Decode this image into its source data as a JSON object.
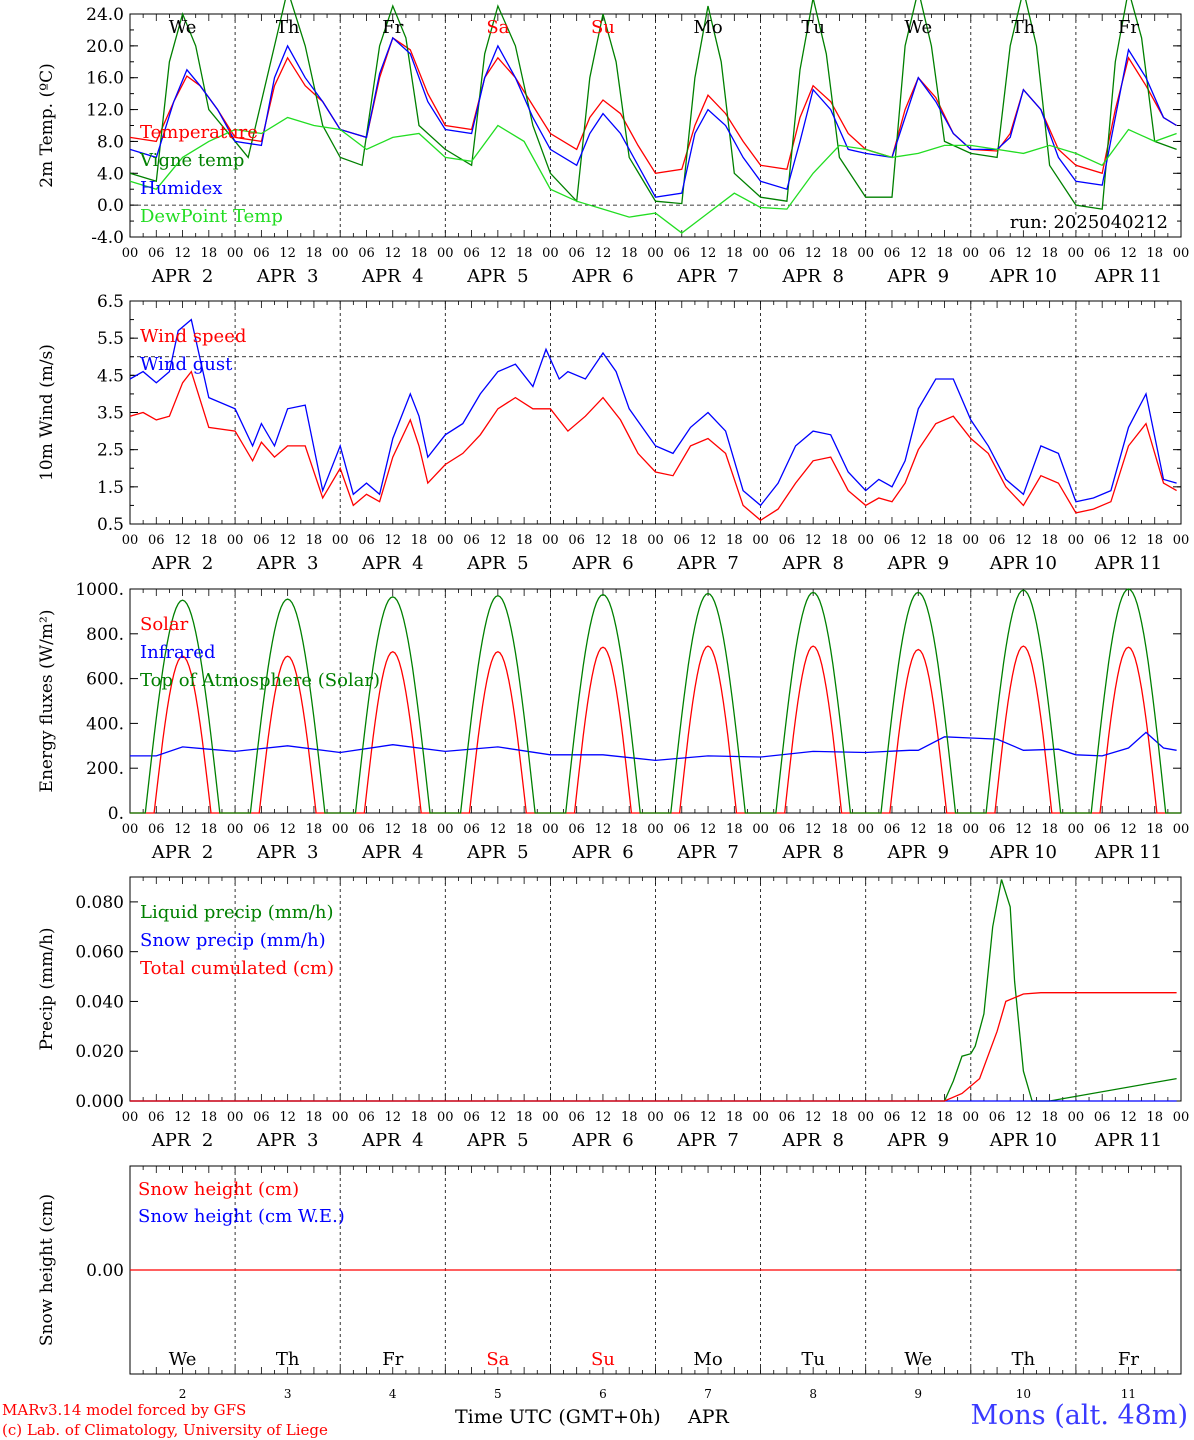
{
  "run": "run: 2025040212",
  "footer": {
    "model": "MARv3.14 model forced by GFS",
    "copyright": "(c) Lab. of Climatology, University of Liege",
    "xlabel": "Time UTC (GMT+0h)",
    "month": "APR",
    "location": "Mons (alt. 48m)"
  },
  "days": {
    "labels": [
      "We",
      "Th",
      "Fr",
      "Sa",
      "Su",
      "Mo",
      "Tu",
      "We",
      "Th",
      "Fr"
    ],
    "weekend": [
      false,
      false,
      false,
      true,
      true,
      false,
      false,
      false,
      false,
      false
    ],
    "dates": [
      "APR  2",
      "APR  3",
      "APR  4",
      "APR  5",
      "APR  6",
      "APR  7",
      "APR  8",
      "APR  9",
      "APR 10",
      "APR 11"
    ],
    "numbers": [
      "2",
      "3",
      "4",
      "5",
      "6",
      "7",
      "8",
      "9",
      "10",
      "11"
    ],
    "hour_ticks": [
      "00",
      "06",
      "12",
      "18"
    ]
  },
  "colors": {
    "red": "#ff0000",
    "green": "#008000",
    "blue": "#0000ff",
    "lime": "#22dd22"
  },
  "chart_data": [
    {
      "id": "temp",
      "type": "line",
      "ylabel": "2m Temp. (ºC)",
      "ylim": [
        -4,
        24
      ],
      "yticks": [
        -4,
        0,
        4,
        8,
        12,
        16,
        20,
        24
      ],
      "ytick_labels": [
        "-4.0",
        "0.0",
        "4.0",
        "8.0",
        "12.0",
        "16.0",
        "20.0",
        "24.0"
      ],
      "dashed_y": 0,
      "x_unit": "hours from 2025-04-02 00 UTC",
      "series": [
        {
          "name": "Temperature",
          "color": "red",
          "x": [
            0,
            6,
            10,
            13,
            16,
            20,
            24,
            30,
            33,
            36,
            40,
            44,
            48,
            54,
            57,
            60,
            64,
            68,
            72,
            78,
            81,
            84,
            88,
            92,
            96,
            102,
            105,
            108,
            112,
            116,
            120,
            126,
            129,
            132,
            136,
            140,
            144,
            150,
            153,
            156,
            160,
            164,
            168,
            174,
            177,
            180,
            184,
            188,
            192,
            198,
            201,
            204,
            208,
            212,
            216,
            222,
            225,
            228,
            232,
            236,
            239
          ],
          "y": [
            8.5,
            8,
            13,
            16.2,
            15,
            12,
            8.5,
            8,
            15,
            18.5,
            15,
            13,
            9.5,
            8.5,
            16,
            21,
            19.5,
            14,
            10,
            9.5,
            16,
            18.5,
            16,
            12.5,
            9,
            7,
            11,
            13.2,
            11.5,
            7.5,
            4,
            4.5,
            10,
            13.8,
            11.5,
            8,
            5,
            4.5,
            11,
            15,
            13,
            9,
            7,
            6,
            12,
            16,
            13.5,
            9,
            7,
            6.8,
            9,
            14.5,
            12,
            7,
            5,
            4,
            12,
            18.5,
            15,
            11,
            10
          ]
        },
        {
          "name": "Vigne temp",
          "color": "green",
          "x": [
            0,
            6,
            9,
            12,
            15,
            18,
            24,
            27,
            33,
            36,
            40,
            44,
            48,
            53,
            57,
            60,
            63,
            66,
            72,
            78,
            81,
            84,
            88,
            92,
            96,
            102,
            105,
            108,
            111,
            114,
            120,
            126,
            129,
            132,
            135,
            138,
            144,
            150,
            153,
            156,
            159,
            162,
            168,
            174,
            177,
            180,
            183,
            186,
            192,
            198,
            201,
            204,
            207,
            210,
            216,
            222,
            225,
            228,
            231,
            234,
            239
          ],
          "y": [
            4,
            3,
            18,
            24,
            20,
            12,
            8,
            6,
            20,
            27,
            20,
            10,
            6,
            5,
            20,
            25,
            21,
            10,
            7,
            5,
            19,
            25,
            20,
            10,
            4,
            0.5,
            16,
            24,
            18,
            6,
            0.5,
            0.2,
            16,
            25,
            18,
            4,
            1,
            0.5,
            17,
            26,
            19,
            6,
            1,
            1,
            20,
            27,
            20,
            8,
            6.5,
            6,
            20,
            27,
            20,
            5,
            0,
            -0.5,
            18,
            27,
            21,
            8,
            7
          ]
        },
        {
          "name": "Humidex",
          "color": "blue",
          "x": [
            0,
            6,
            10,
            13,
            16,
            20,
            24,
            30,
            33,
            36,
            40,
            44,
            48,
            54,
            57,
            60,
            64,
            68,
            72,
            78,
            81,
            84,
            88,
            92,
            96,
            102,
            105,
            108,
            112,
            116,
            120,
            126,
            129,
            132,
            136,
            140,
            144,
            150,
            153,
            156,
            160,
            164,
            168,
            174,
            177,
            180,
            184,
            188,
            192,
            198,
            201,
            204,
            208,
            212,
            216,
            222,
            225,
            228,
            232,
            236,
            239
          ],
          "y": [
            7,
            6,
            13,
            17,
            15,
            12,
            8,
            7.5,
            16,
            20,
            16,
            13,
            9.5,
            8.5,
            16.5,
            21,
            19,
            13,
            9.5,
            9,
            16,
            20,
            16,
            11,
            7,
            5,
            9,
            11.5,
            9,
            5,
            1,
            1.5,
            9,
            12,
            10,
            6,
            3,
            2,
            8,
            14.5,
            12,
            7,
            6.5,
            6,
            11,
            16,
            13,
            9,
            7,
            7,
            8.5,
            14.5,
            12,
            6,
            3,
            2.5,
            11,
            19.5,
            16,
            11,
            10
          ]
        },
        {
          "name": "DewPoint Temp",
          "color": "lime",
          "x": [
            0,
            6,
            12,
            18,
            24,
            30,
            36,
            42,
            48,
            54,
            60,
            66,
            72,
            78,
            84,
            90,
            96,
            102,
            108,
            114,
            120,
            126,
            132,
            138,
            144,
            150,
            156,
            162,
            168,
            174,
            180,
            186,
            192,
            198,
            204,
            210,
            216,
            222,
            228,
            234,
            239
          ],
          "y": [
            3,
            2,
            6,
            8,
            9.5,
            9,
            11,
            10,
            9.5,
            7,
            8.5,
            9,
            6,
            5.5,
            10,
            8,
            2,
            0.5,
            -0.5,
            -1.5,
            -1,
            -3.5,
            -1,
            1.5,
            -0.3,
            -0.5,
            4,
            7.5,
            7,
            6,
            6.5,
            7.5,
            7.5,
            7,
            6.5,
            7.5,
            6.5,
            5,
            9.5,
            8,
            9
          ]
        }
      ]
    },
    {
      "id": "wind",
      "type": "line",
      "ylabel": "10m Wind (m/s)",
      "ylim": [
        0.5,
        6.5
      ],
      "yticks": [
        0.5,
        1.5,
        2.5,
        3.5,
        4.5,
        5.5,
        6.5
      ],
      "ytick_labels": [
        "0.5",
        "1.5",
        "2.5",
        "3.5",
        "4.5",
        "5.5",
        "6.5"
      ],
      "dashed_y": 5,
      "series": [
        {
          "name": "Wind speed",
          "color": "red",
          "x": [
            0,
            3,
            6,
            9,
            12,
            14,
            18,
            24,
            28,
            30,
            33,
            36,
            40,
            44,
            48,
            51,
            54,
            57,
            60,
            64,
            66,
            68,
            72,
            76,
            80,
            84,
            88,
            92,
            96,
            100,
            104,
            108,
            112,
            116,
            120,
            124,
            128,
            132,
            136,
            140,
            144,
            148,
            152,
            156,
            160,
            164,
            168,
            171,
            174,
            177,
            180,
            184,
            188,
            192,
            196,
            200,
            204,
            208,
            212,
            216,
            220,
            224,
            228,
            232,
            236,
            239
          ],
          "y": [
            3.4,
            3.5,
            3.3,
            3.4,
            4.3,
            4.6,
            3.1,
            3.0,
            2.2,
            2.7,
            2.3,
            2.6,
            2.6,
            1.2,
            2.0,
            1.0,
            1.3,
            1.1,
            2.3,
            3.3,
            2.6,
            1.6,
            2.1,
            2.4,
            2.9,
            3.6,
            3.9,
            3.6,
            3.6,
            3.0,
            3.4,
            3.9,
            3.3,
            2.4,
            1.9,
            1.8,
            2.6,
            2.8,
            2.4,
            1.0,
            0.6,
            0.9,
            1.6,
            2.2,
            2.3,
            1.4,
            1.0,
            1.2,
            1.1,
            1.6,
            2.5,
            3.2,
            3.4,
            2.8,
            2.4,
            1.5,
            1.0,
            1.8,
            1.6,
            0.8,
            0.9,
            1.1,
            2.6,
            3.2,
            1.6,
            1.4
          ]
        },
        {
          "name": "Wind gust",
          "color": "blue",
          "x": [
            0,
            3,
            6,
            9,
            11,
            14,
            18,
            24,
            28,
            30,
            33,
            36,
            40,
            44,
            48,
            51,
            54,
            57,
            60,
            64,
            66,
            68,
            72,
            76,
            80,
            84,
            88,
            92,
            95,
            98,
            100,
            104,
            108,
            111,
            114,
            120,
            124,
            128,
            132,
            136,
            140,
            144,
            148,
            152,
            156,
            160,
            164,
            168,
            171,
            174,
            177,
            180,
            184,
            188,
            192,
            196,
            200,
            204,
            208,
            212,
            216,
            220,
            224,
            228,
            232,
            236,
            239
          ],
          "y": [
            4.4,
            4.6,
            4.3,
            4.6,
            5.7,
            6.0,
            3.9,
            3.6,
            2.6,
            3.2,
            2.6,
            3.6,
            3.7,
            1.4,
            2.6,
            1.3,
            1.6,
            1.3,
            2.8,
            4.0,
            3.4,
            2.3,
            2.9,
            3.2,
            4.0,
            4.6,
            4.8,
            4.2,
            5.2,
            4.4,
            4.6,
            4.4,
            5.1,
            4.6,
            3.6,
            2.6,
            2.4,
            3.1,
            3.5,
            3.0,
            1.4,
            1.0,
            1.6,
            2.6,
            3.0,
            2.9,
            1.9,
            1.4,
            1.7,
            1.5,
            2.2,
            3.6,
            4.4,
            4.4,
            3.3,
            2.6,
            1.7,
            1.3,
            2.6,
            2.4,
            1.1,
            1.2,
            1.4,
            3.1,
            4.0,
            1.7,
            1.6
          ]
        }
      ]
    },
    {
      "id": "flux",
      "type": "line",
      "ylabel": "Energy fluxes (W/m²)",
      "ylim": [
        0,
        1000
      ],
      "yticks": [
        0,
        200,
        400,
        600,
        800,
        1000
      ],
      "ytick_labels": [
        "0.",
        "200.",
        "400.",
        "600.",
        "800.",
        "1000."
      ],
      "solar_peaks": [
        700,
        700,
        720,
        720,
        740,
        745,
        745,
        730,
        745,
        740
      ],
      "toa_peaks": [
        950,
        955,
        965,
        970,
        975,
        980,
        985,
        985,
        995,
        1000
      ],
      "series": [
        {
          "name": "Solar",
          "color": "red"
        },
        {
          "name": "Infrared",
          "color": "blue",
          "x": [
            0,
            6,
            12,
            18,
            24,
            36,
            48,
            60,
            72,
            84,
            96,
            108,
            120,
            132,
            144,
            156,
            168,
            178,
            180,
            186,
            192,
            198,
            204,
            212,
            216,
            222,
            228,
            232,
            236,
            239
          ],
          "y": [
            255,
            255,
            295,
            285,
            275,
            300,
            270,
            305,
            275,
            295,
            260,
            260,
            235,
            255,
            250,
            275,
            270,
            280,
            280,
            340,
            335,
            330,
            280,
            285,
            260,
            255,
            290,
            360,
            290,
            280
          ]
        },
        {
          "name": "Top of Atmosphere (Solar)",
          "color": "green"
        }
      ]
    },
    {
      "id": "precip",
      "type": "line",
      "ylabel": "Precip (mm/h)",
      "ylim": [
        0,
        0.09
      ],
      "yticks": [
        0,
        0.02,
        0.04,
        0.06,
        0.08
      ],
      "ytick_labels": [
        "0.000",
        "0.020",
        "0.040",
        "0.060",
        "0.080"
      ],
      "series": [
        {
          "name": "Liquid precip (mm/h)",
          "color": "green",
          "x": [
            0,
            186,
            188,
            190,
            192,
            193,
            195,
            197,
            199,
            201,
            202,
            204,
            206,
            208,
            210,
            239
          ],
          "y": [
            0,
            0,
            0.008,
            0.018,
            0.019,
            0.022,
            0.035,
            0.07,
            0.089,
            0.078,
            0.048,
            0.012,
            0,
            0,
            0,
            0.009
          ]
        },
        {
          "name": "Snow precip (mm/h)",
          "color": "blue",
          "x": [
            0,
            239
          ],
          "y": [
            0,
            0
          ]
        },
        {
          "name": "Total cumulated (cm)",
          "color": "red",
          "x": [
            0,
            186,
            190,
            194,
            198,
            200,
            204,
            208,
            212,
            239
          ],
          "y": [
            0,
            0,
            0.003,
            0.009,
            0.028,
            0.04,
            0.043,
            0.0435,
            0.0435,
            0.0435
          ]
        }
      ]
    },
    {
      "id": "snow",
      "type": "line",
      "ylabel": "Snow height (cm)",
      "ylim": [
        -1,
        1
      ],
      "yticks": [
        0
      ],
      "ytick_labels": [
        "0.00"
      ],
      "series": [
        {
          "name": "Snow height (cm)",
          "color": "red",
          "x": [
            0,
            239
          ],
          "y": [
            0,
            0
          ]
        },
        {
          "name": "Snow height (cm W.E.)",
          "color": "blue"
        }
      ]
    }
  ]
}
